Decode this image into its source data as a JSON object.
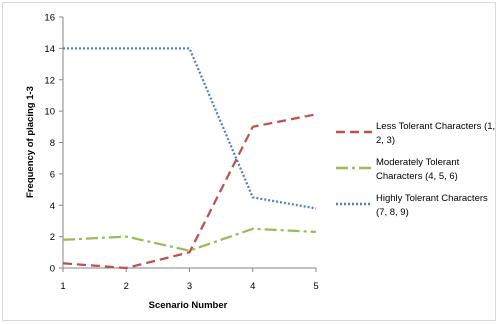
{
  "chart_data": {
    "type": "line",
    "xlabel": "Scenario Number",
    "ylabel": "Frequency of placing 1-3",
    "xlim": [
      1,
      5
    ],
    "ylim": [
      0,
      16
    ],
    "x_ticks": [
      "1",
      "2",
      "3",
      "4",
      "5"
    ],
    "y_ticks": [
      "0",
      "2",
      "4",
      "6",
      "8",
      "10",
      "12",
      "14",
      "16"
    ],
    "grid": false,
    "legend_position": "right",
    "series": [
      {
        "name": "Less Tolerant Characters (1, 2, 3)",
        "x": [
          1,
          2,
          3,
          4,
          5
        ],
        "values": [
          0.3,
          0,
          1,
          9,
          9.8
        ],
        "color": "#c0504d",
        "dash": "dashed"
      },
      {
        "name": "Moderately Tolerant Characters (4, 5, 6)",
        "x": [
          1,
          2,
          3,
          4,
          5
        ],
        "values": [
          1.8,
          2,
          1.1,
          2.5,
          2.3
        ],
        "color": "#9bbb59",
        "dash": "dash-dot"
      },
      {
        "name": "Highly Tolerant Characters (7, 8, 9)",
        "x": [
          1,
          2,
          3,
          4,
          5
        ],
        "values": [
          14,
          14,
          14,
          4.5,
          3.8
        ],
        "color": "#4f81bd",
        "dash": "dotted"
      }
    ]
  }
}
